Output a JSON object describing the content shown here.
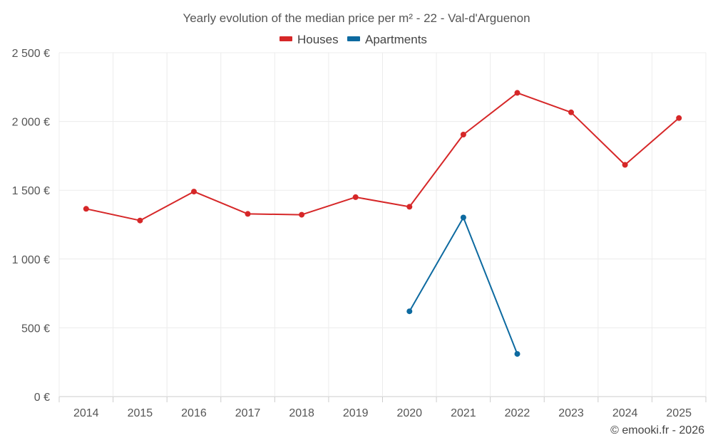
{
  "chart_data": {
    "type": "line",
    "title": "Yearly evolution of the median price per m² - 22 - Val-d'Arguenon",
    "categories": [
      "2014",
      "2015",
      "2016",
      "2017",
      "2018",
      "2019",
      "2020",
      "2021",
      "2022",
      "2023",
      "2024",
      "2025"
    ],
    "series": [
      {
        "name": "Houses",
        "color": "#d62728",
        "values": [
          1365,
          1280,
          1490,
          1328,
          1322,
          1450,
          1380,
          1905,
          2208,
          2066,
          1685,
          2025
        ]
      },
      {
        "name": "Apartments",
        "color": "#0d6aa0",
        "values": [
          null,
          null,
          null,
          null,
          null,
          null,
          620,
          1302,
          310,
          null,
          null,
          null
        ]
      }
    ],
    "ylim": [
      0,
      2500
    ],
    "yticks": [
      0,
      500,
      1000,
      1500,
      2000,
      2500
    ],
    "ytick_labels": [
      "0 €",
      "500 €",
      "1 000 €",
      "1 500 €",
      "2 000 €",
      "2 500 €"
    ],
    "xlabel": "",
    "ylabel": "",
    "grid": true,
    "legend_position": "top-center"
  },
  "credit": "© emooki.fr - 2026"
}
